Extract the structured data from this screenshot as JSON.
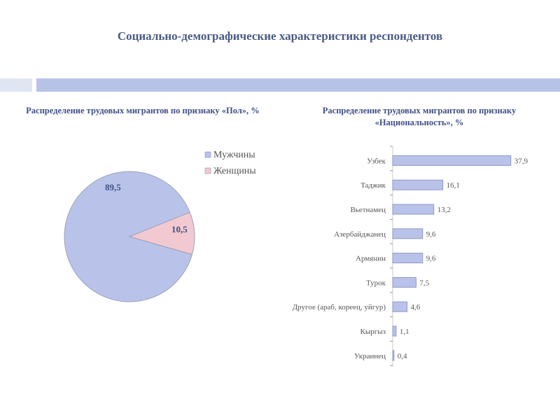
{
  "page": {
    "title": "Социально-демографические характеристики респондентов"
  },
  "chart_data": [
    {
      "type": "pie",
      "title": "Распределение трудовых мигрантов по признаку «Пол», %",
      "categories": [
        "Мужчины",
        "Женщины"
      ],
      "values": [
        89.5,
        10.5
      ],
      "data_labels": [
        "89,5",
        "10,5"
      ],
      "legend_position": "top-right",
      "colors": [
        "#b9c3ea",
        "#f3c9d1"
      ]
    },
    {
      "type": "bar",
      "orientation": "horizontal",
      "title": "Распределение трудовых мигрантов по признаку «Национальность», %",
      "categories": [
        "Узбек",
        "Таджик",
        "Вьетнамец",
        "Азербайджанец",
        "Армянин",
        "Турок",
        "Другое (араб, кореец, уйгур)",
        "Кыргыз",
        "Украинец"
      ],
      "values": [
        37.9,
        16.1,
        13.2,
        9.6,
        9.6,
        7.5,
        4.6,
        1.1,
        0.4
      ],
      "data_labels": [
        "37,9",
        "16,1",
        "13,2",
        "9,6",
        "9,6",
        "7,5",
        "4,6",
        "1,1",
        "0,4"
      ],
      "xlim": [
        0,
        40
      ],
      "grid": false,
      "colors": [
        "#b9c3ea"
      ]
    }
  ]
}
